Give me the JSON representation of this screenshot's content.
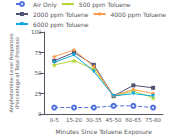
{
  "chart_data": {
    "type": "line",
    "xlabel": "Minutes Since Toluene Exposure",
    "ylabel": "Amphetamine-Lever Responses\n(Percentage of Total Presses)",
    "categories": [
      "0-5",
      "15-20",
      "30-35",
      "45-50",
      "60-65",
      "75-80"
    ],
    "series": [
      {
        "name": "Air Only",
        "values": [
          8,
          8,
          8,
          10,
          10,
          8
        ],
        "marker": "circle",
        "line_style": "dashed"
      },
      {
        "name": "500 ppm Toluene",
        "values": [
          60,
          65,
          55,
          22,
          28,
          20
        ],
        "marker": "star",
        "line_style": "solid"
      },
      {
        "name": "2000 ppm Toluene",
        "values": [
          65,
          75,
          60,
          22,
          35,
          32
        ],
        "marker": "square",
        "line_style": "solid"
      },
      {
        "name": "4000 ppm Toluene",
        "values": [
          70,
          78,
          58,
          22,
          30,
          25
        ],
        "marker": "diamond",
        "line_style": "solid"
      },
      {
        "name": "6000 ppm Toluene",
        "values": [
          63,
          72,
          52,
          22,
          25,
          22
        ],
        "marker": "triangle-down",
        "line_style": "solid"
      }
    ],
    "ylim": [
      0,
      100
    ],
    "yticks": [
      0,
      25,
      50,
      75,
      100
    ],
    "grid": false,
    "legend": "upper right"
  }
}
